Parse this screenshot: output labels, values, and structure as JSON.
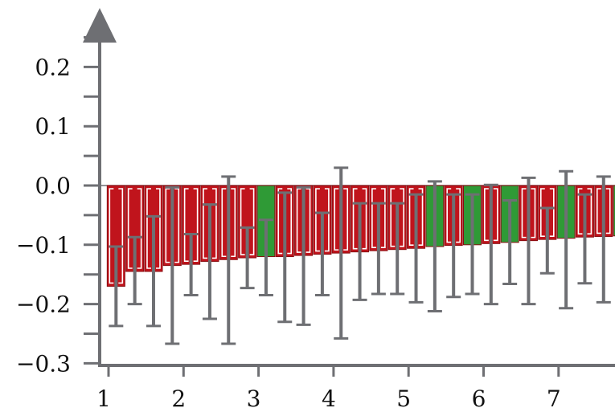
{
  "chart_data": {
    "type": "bar",
    "title": "",
    "xlabel": "",
    "ylabel": "",
    "ylim": [
      -0.3,
      0.25
    ],
    "yticks": [
      -0.3,
      -0.2,
      -0.1,
      0.0,
      0.1,
      0.2
    ],
    "ytick_labels": [
      "−0.3",
      "−0.2",
      "−0.1",
      "0.0",
      "0.1",
      "0.2"
    ],
    "xlim": [
      0.9,
      7.5
    ],
    "xticks": [
      1,
      2,
      3,
      4,
      5,
      6,
      7
    ],
    "xtick_labels": [
      "1",
      "2",
      "3",
      "4",
      "5",
      "6",
      "7"
    ],
    "grid": false,
    "legend": "none",
    "colors": {
      "negative_bar": "#c0141c",
      "positive_bar": "#2f9a36",
      "bar_edge": "#ffffff",
      "error_bar": "#6e6f73",
      "axis": "#6e6f73"
    },
    "bars": [
      {
        "x": 1.1,
        "value": -0.17,
        "err_low": -0.237,
        "err_high": -0.103,
        "sign": "negative"
      },
      {
        "x": 1.35,
        "value": -0.145,
        "err_low": -0.2,
        "err_high": -0.087,
        "sign": "negative"
      },
      {
        "x": 1.6,
        "value": -0.145,
        "err_low": -0.237,
        "err_high": -0.052,
        "sign": "negative"
      },
      {
        "x": 1.85,
        "value": -0.135,
        "err_low": -0.267,
        "err_high": -0.003,
        "sign": "negative"
      },
      {
        "x": 2.1,
        "value": -0.133,
        "err_low": -0.185,
        "err_high": -0.082,
        "sign": "negative"
      },
      {
        "x": 2.35,
        "value": -0.128,
        "err_low": -0.225,
        "err_high": -0.032,
        "sign": "negative"
      },
      {
        "x": 2.6,
        "value": -0.125,
        "err_low": -0.267,
        "err_high": 0.015,
        "sign": "negative"
      },
      {
        "x": 2.85,
        "value": -0.122,
        "err_low": -0.173,
        "err_high": -0.071,
        "sign": "negative"
      },
      {
        "x": 3.1,
        "value": -0.12,
        "err_low": -0.185,
        "err_high": -0.058,
        "sign": "positive"
      },
      {
        "x": 3.35,
        "value": -0.12,
        "err_low": -0.23,
        "err_high": -0.012,
        "sign": "negative"
      },
      {
        "x": 3.6,
        "value": -0.118,
        "err_low": -0.235,
        "err_high": -0.003,
        "sign": "negative"
      },
      {
        "x": 3.85,
        "value": -0.116,
        "err_low": -0.185,
        "err_high": -0.046,
        "sign": "negative"
      },
      {
        "x": 4.1,
        "value": -0.114,
        "err_low": -0.258,
        "err_high": 0.03,
        "sign": "negative"
      },
      {
        "x": 4.35,
        "value": -0.112,
        "err_low": -0.193,
        "err_high": -0.03,
        "sign": "negative"
      },
      {
        "x": 4.6,
        "value": -0.11,
        "err_low": -0.183,
        "err_high": -0.03,
        "sign": "negative"
      },
      {
        "x": 4.85,
        "value": -0.108,
        "err_low": -0.183,
        "err_high": -0.03,
        "sign": "negative"
      },
      {
        "x": 5.1,
        "value": -0.106,
        "err_low": -0.197,
        "err_high": -0.015,
        "sign": "negative"
      },
      {
        "x": 5.35,
        "value": -0.103,
        "err_low": -0.212,
        "err_high": 0.007,
        "sign": "positive"
      },
      {
        "x": 5.6,
        "value": -0.101,
        "err_low": -0.188,
        "err_high": -0.015,
        "sign": "negative"
      },
      {
        "x": 5.85,
        "value": -0.1,
        "err_low": -0.183,
        "err_high": -0.015,
        "sign": "positive"
      },
      {
        "x": 6.1,
        "value": -0.098,
        "err_low": -0.2,
        "err_high": 0.001,
        "sign": "negative"
      },
      {
        "x": 6.35,
        "value": -0.096,
        "err_low": -0.166,
        "err_high": -0.025,
        "sign": "positive"
      },
      {
        "x": 6.6,
        "value": -0.093,
        "err_low": -0.2,
        "err_high": 0.013,
        "sign": "negative"
      },
      {
        "x": 6.85,
        "value": -0.091,
        "err_low": -0.148,
        "err_high": -0.038,
        "sign": "negative"
      },
      {
        "x": 7.1,
        "value": -0.089,
        "err_low": -0.207,
        "err_high": 0.024,
        "sign": "positive"
      },
      {
        "x": 7.35,
        "value": -0.087,
        "err_low": -0.165,
        "err_high": -0.015,
        "sign": "negative"
      },
      {
        "x": 7.6,
        "value": -0.086,
        "err_low": -0.197,
        "err_high": 0.015,
        "sign": "negative"
      },
      {
        "x": 7.85,
        "value": -0.085,
        "err_low": -0.14,
        "err_high": -0.04,
        "sign": "positive"
      }
    ]
  }
}
